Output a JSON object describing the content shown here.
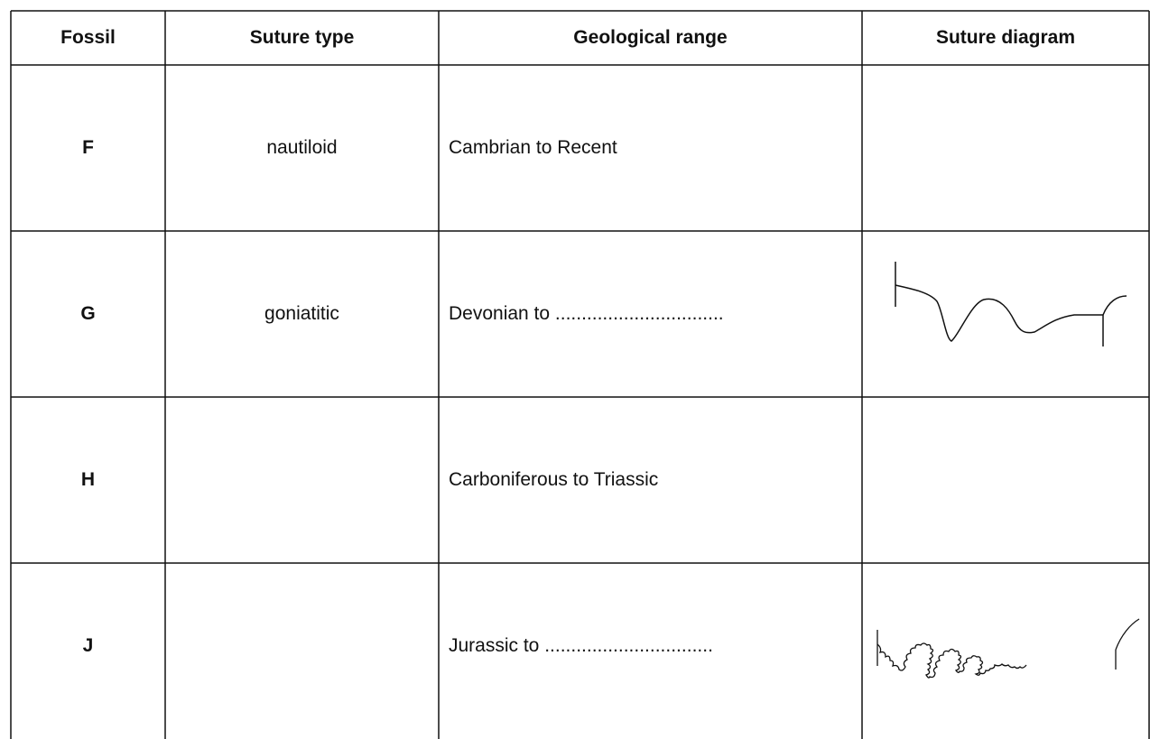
{
  "table": {
    "header": [
      "Fossil",
      "Suture type",
      "Geological range",
      "Suture diagram"
    ],
    "rows": [
      {
        "fossil": "F",
        "suture_type": "nautiloid",
        "range": "Cambrian to Recent"
      },
      {
        "fossil": "G",
        "suture_type": "goniatitic",
        "range": "Devonian to ................................"
      },
      {
        "fossil": "H",
        "range": "Carboniferous to Triassic"
      },
      {
        "fossil": "J",
        "range": "Jurassic to ................................"
      }
    ]
  }
}
